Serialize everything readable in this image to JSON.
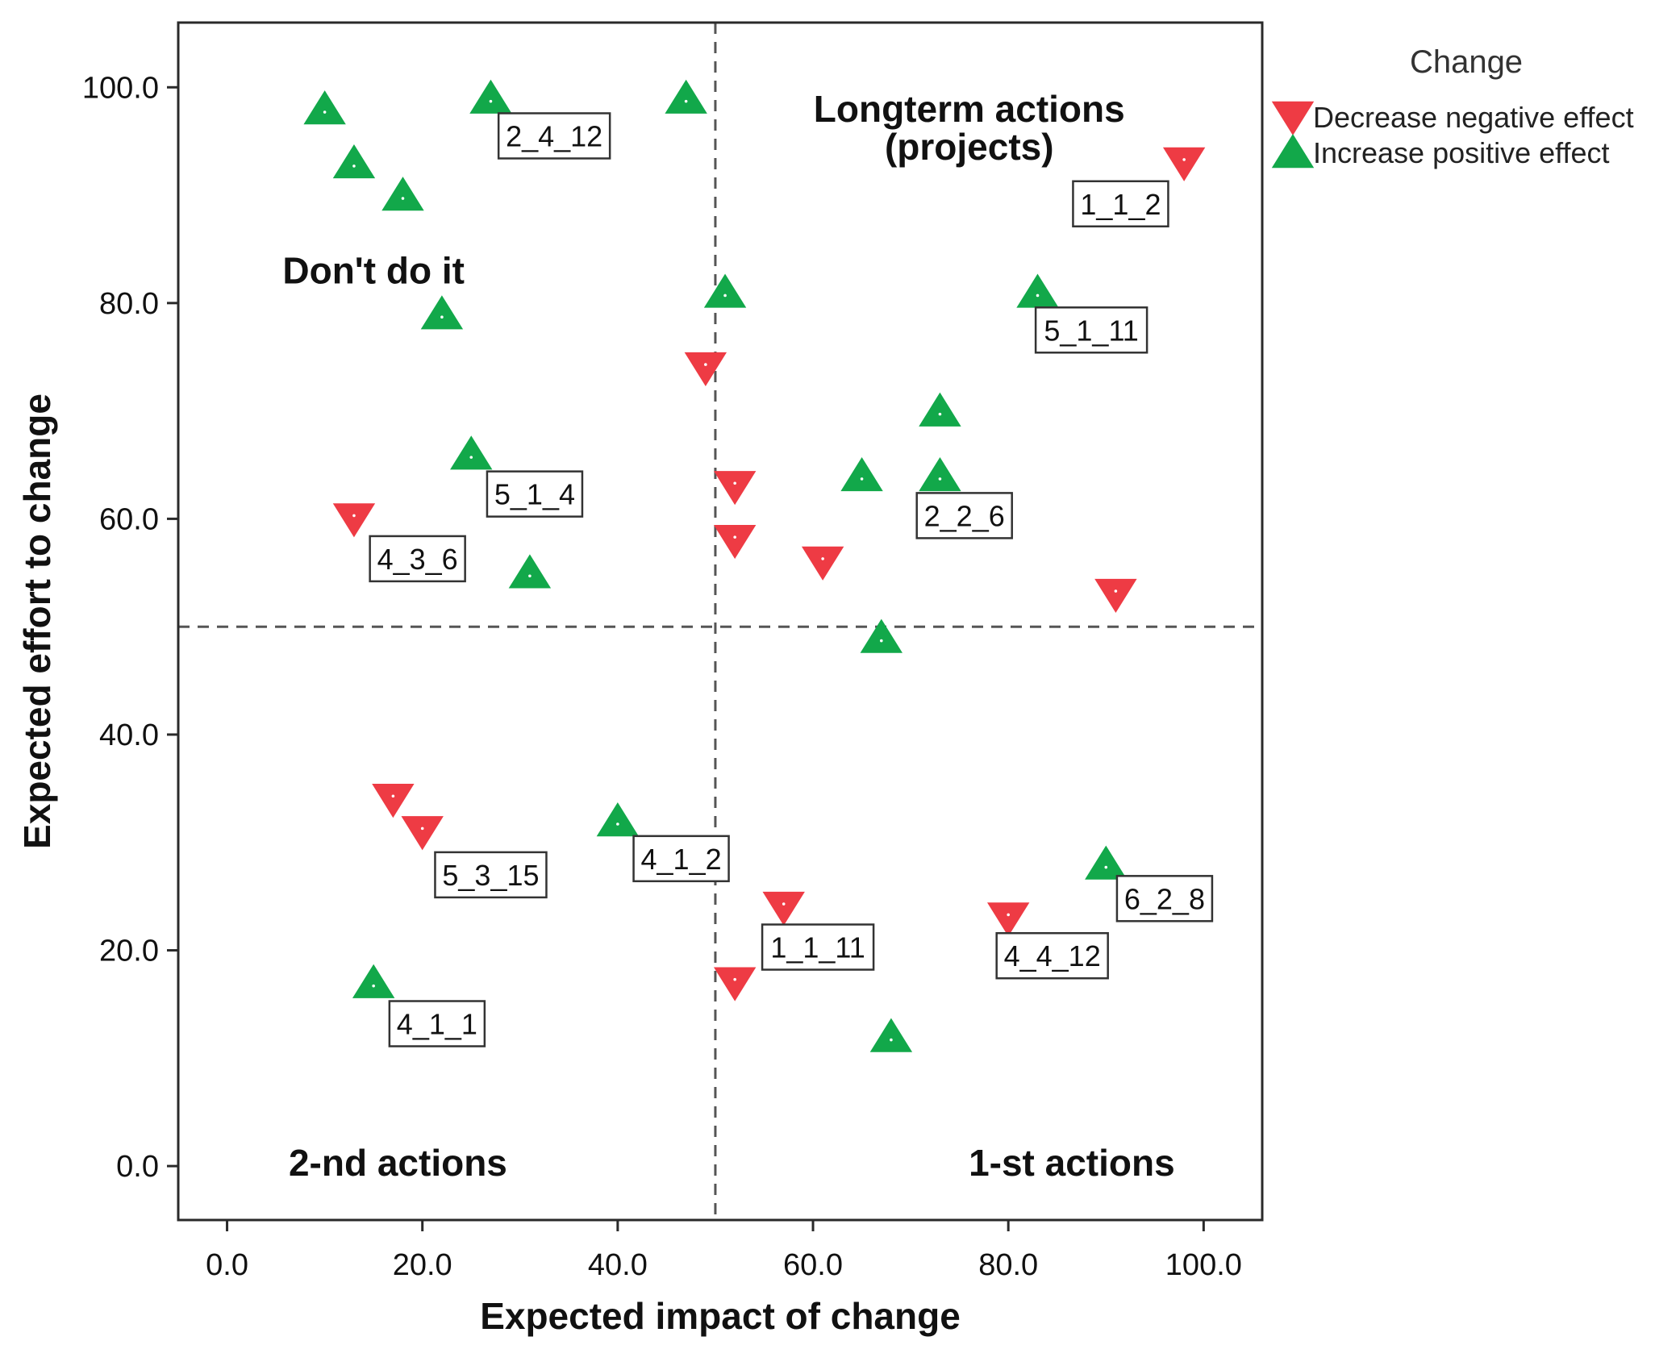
{
  "chart_data": {
    "type": "scatter",
    "xlabel": "Expected impact of change",
    "ylabel": "Expected effort to change",
    "xlim": [
      -5,
      106
    ],
    "ylim": [
      -5,
      106
    ],
    "x_ticks": [
      "0.0",
      "20.0",
      "40.0",
      "60.0",
      "80.0",
      "100.0"
    ],
    "y_ticks": [
      "0.0",
      "20.0",
      "40.0",
      "60.0",
      "80.0",
      "100.0"
    ],
    "reference_lines": {
      "x": 50,
      "y": 50,
      "style": "dashed"
    },
    "quadrant_labels": [
      {
        "text": "Don't do it",
        "x": 15,
        "y": 83
      },
      {
        "text": "Longterm actions",
        "x": 76,
        "y": 98
      },
      {
        "text": "(projects)",
        "x": 76,
        "y": 94.5
      },
      {
        "text": "2-nd actions",
        "x": 17.5,
        "y": 0.3
      },
      {
        "text": "1-st actions",
        "x": 86.5,
        "y": 0.3
      }
    ],
    "legend": {
      "title": "Change",
      "position": "top-right, outside plot",
      "entries": [
        {
          "name": "Decrease negative effect",
          "color": "#ee3b44",
          "marker": "triangle-down"
        },
        {
          "name": "Increase positive effect",
          "color": "#12a84a",
          "marker": "triangle-up"
        }
      ]
    },
    "series": [
      {
        "name": "Decrease negative effect",
        "color": "#ee3b44",
        "marker": "triangle-down",
        "points": [
          {
            "x": 98,
            "y": 93
          },
          {
            "x": 49,
            "y": 74
          },
          {
            "x": 52,
            "y": 63
          },
          {
            "x": 52,
            "y": 58
          },
          {
            "x": 61,
            "y": 56
          },
          {
            "x": 91,
            "y": 53
          },
          {
            "x": 13,
            "y": 60
          },
          {
            "x": 17,
            "y": 34
          },
          {
            "x": 20,
            "y": 31
          },
          {
            "x": 57,
            "y": 24
          },
          {
            "x": 80,
            "y": 23
          },
          {
            "x": 52,
            "y": 17
          }
        ]
      },
      {
        "name": "Increase positive effect",
        "color": "#12a84a",
        "marker": "triangle-up",
        "points": [
          {
            "x": 10,
            "y": 98
          },
          {
            "x": 27,
            "y": 99
          },
          {
            "x": 47,
            "y": 99
          },
          {
            "x": 13,
            "y": 93
          },
          {
            "x": 18,
            "y": 90
          },
          {
            "x": 51,
            "y": 81
          },
          {
            "x": 83,
            "y": 81
          },
          {
            "x": 22,
            "y": 79
          },
          {
            "x": 73,
            "y": 70
          },
          {
            "x": 25,
            "y": 66
          },
          {
            "x": 65,
            "y": 64
          },
          {
            "x": 73,
            "y": 64
          },
          {
            "x": 31,
            "y": 55
          },
          {
            "x": 67,
            "y": 49
          },
          {
            "x": 40,
            "y": 32
          },
          {
            "x": 90,
            "y": 28
          },
          {
            "x": 15,
            "y": 17
          },
          {
            "x": 68,
            "y": 12
          }
        ]
      }
    ],
    "point_labels": [
      {
        "text": "2_4_12",
        "x": 33.5,
        "y": 95.5
      },
      {
        "text": "1_1_2",
        "x": 91.5,
        "y": 89.2
      },
      {
        "text": "5_1_11",
        "x": 88.5,
        "y": 77.5
      },
      {
        "text": "5_1_4",
        "x": 31.5,
        "y": 62.3
      },
      {
        "text": "2_2_6",
        "x": 75.5,
        "y": 60.3
      },
      {
        "text": "4_3_6",
        "x": 19.5,
        "y": 56.3
      },
      {
        "text": "5_3_15",
        "x": 27,
        "y": 27
      },
      {
        "text": "4_1_2",
        "x": 46.5,
        "y": 28.5
      },
      {
        "text": "1_1_11",
        "x": 60.5,
        "y": 20.3
      },
      {
        "text": "6_2_8",
        "x": 96,
        "y": 24.8
      },
      {
        "text": "4_4_12",
        "x": 84.5,
        "y": 19.5
      },
      {
        "text": "4_1_1",
        "x": 21.5,
        "y": 13.2
      }
    ]
  }
}
